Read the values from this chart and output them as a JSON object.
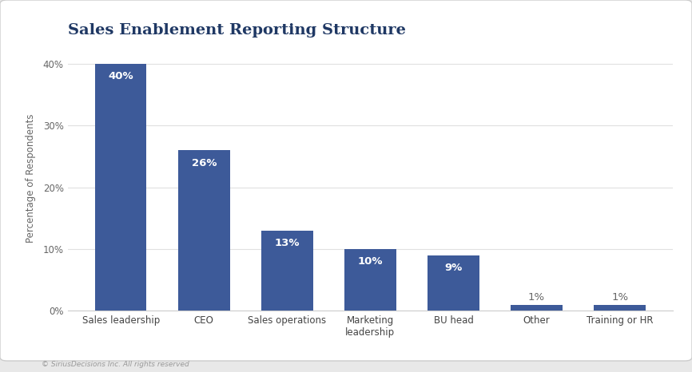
{
  "title": "Sales Enablement Reporting Structure",
  "categories": [
    "Sales leadership",
    "CEO",
    "Sales operations",
    "Marketing\nleadership",
    "BU head",
    "Other",
    "Training or HR"
  ],
  "values": [
    40,
    26,
    13,
    10,
    9,
    1,
    1
  ],
  "bar_color": "#3D5A99",
  "ylabel": "Percentage of Respondents",
  "yticks": [
    0,
    10,
    20,
    30,
    40
  ],
  "ytick_labels": [
    "0%",
    "10%",
    "20%",
    "30%",
    "40%"
  ],
  "ylim": [
    0,
    43
  ],
  "bar_labels": [
    "40%",
    "26%",
    "13%",
    "10%",
    "9%",
    "1%",
    "1%"
  ],
  "title_color": "#1F3864",
  "title_fontsize": 14,
  "label_fontsize": 9.5,
  "axis_fontsize": 8.5,
  "footer_text": "© SiriusDecisions Inc. All rights reserved",
  "background_color": "#F0F0F0",
  "plot_bg_color": "#FFFFFF",
  "card_bg_color": "#FFFFFF"
}
